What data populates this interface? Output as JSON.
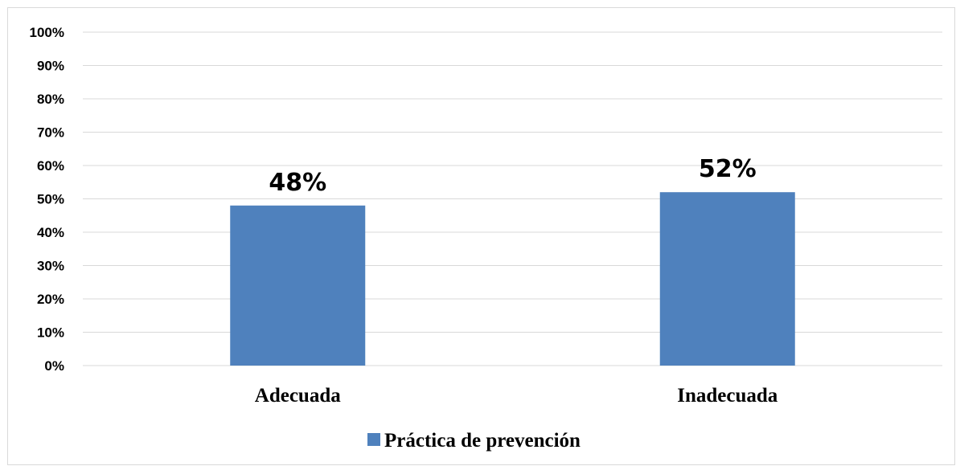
{
  "chart_data": {
    "type": "bar",
    "categories": [
      "Adecuada",
      "Inadecuada"
    ],
    "series": [
      {
        "name": "Práctica de prevención",
        "values": [
          48,
          52
        ],
        "data_labels": [
          "48%",
          "52%"
        ],
        "color": "#4f81bd"
      }
    ],
    "ylim": [
      0,
      100
    ],
    "yticks": [
      "0%",
      "10%",
      "20%",
      "30%",
      "40%",
      "50%",
      "60%",
      "70%",
      "80%",
      "90%",
      "100%"
    ],
    "grid": true,
    "legend_position": "bottom",
    "title": "",
    "xlabel": "",
    "ylabel": ""
  }
}
